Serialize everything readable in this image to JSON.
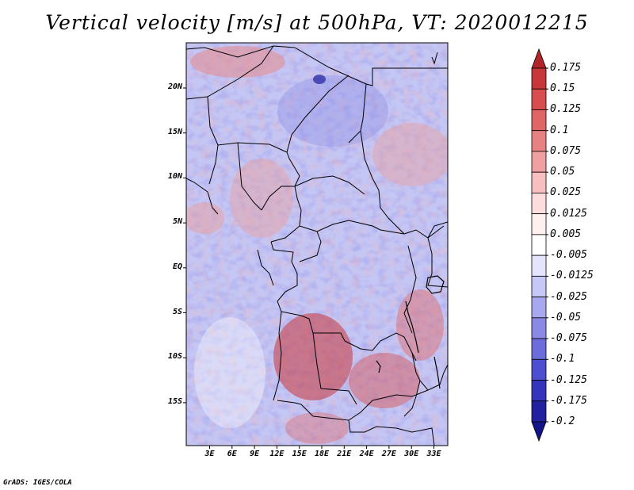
{
  "title": "Vertical velocity [m/s] at 500hPa, VT: 2020012215",
  "variable": "Vertical velocity",
  "units": "m/s",
  "level": "500hPa",
  "valid_time": "2020012215",
  "latitude_labels": [
    "20N",
    "15N",
    "10N",
    "5N",
    "EQ",
    "5S",
    "10S",
    "15S"
  ],
  "longitude_labels": [
    "3E",
    "6E",
    "9E",
    "12E",
    "15E",
    "18E",
    "21E",
    "24E",
    "27E",
    "30E",
    "33E"
  ],
  "colorbar": {
    "labels": [
      "0.175",
      "0.15",
      "0.125",
      "0.1",
      "0.075",
      "0.05",
      "0.025",
      "0.0125",
      "0.005",
      "-0.005",
      "-0.0125",
      "-0.025",
      "-0.05",
      "-0.075",
      "-0.1",
      "-0.125",
      "-0.175",
      "-0.2"
    ],
    "colors": [
      "#b0242a",
      "#c8373a",
      "#d84e4e",
      "#e06666",
      "#e88282",
      "#f0a0a0",
      "#f7bfbf",
      "#fcdcdc",
      "#fff0f0",
      "#ffffff",
      "#e4e4fc",
      "#c8c8f8",
      "#a8a8f0",
      "#8a8ae6",
      "#6c6cdc",
      "#4e4ed0",
      "#3434bc",
      "#2020a0",
      "#14148a"
    ]
  },
  "footer": "GrADS: IGES/COLA"
}
